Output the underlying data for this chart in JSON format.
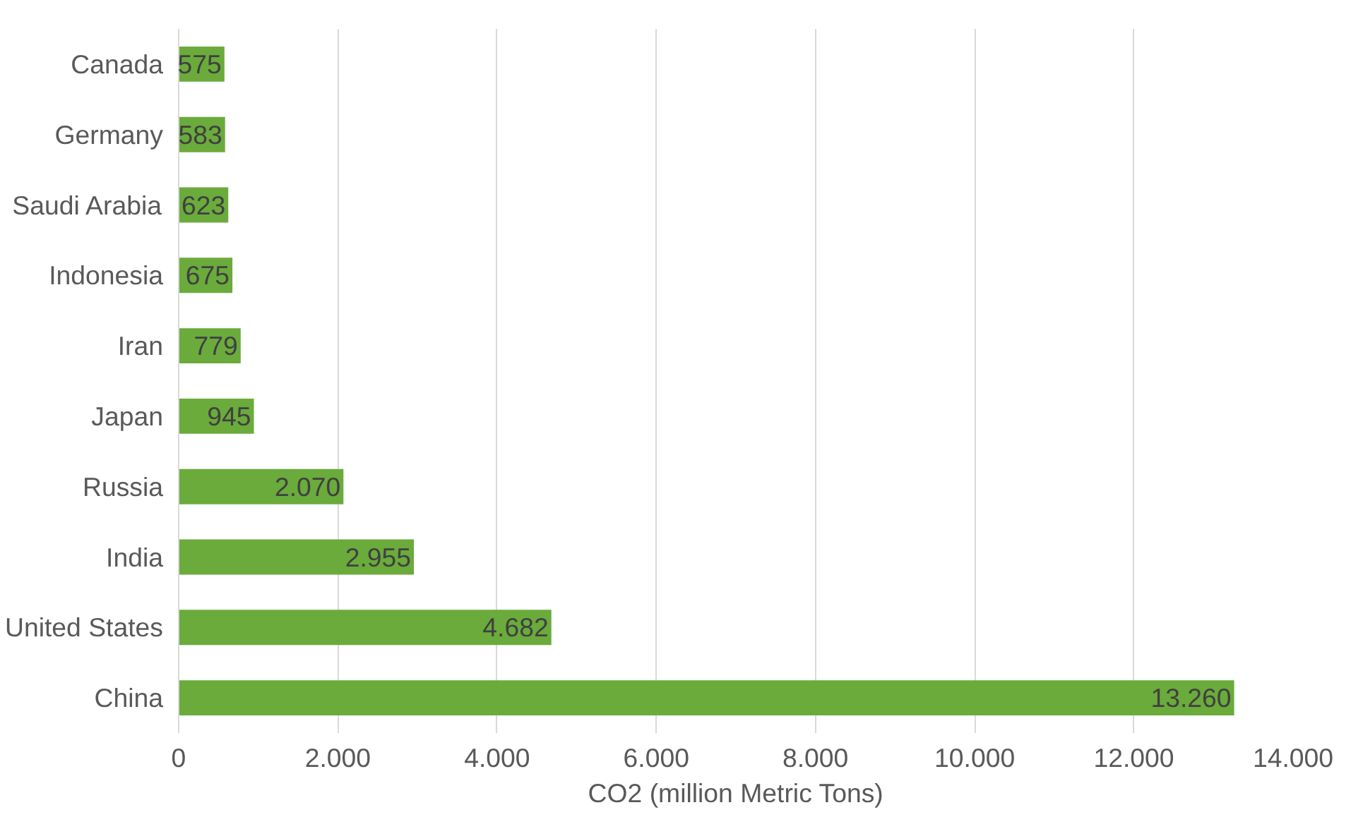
{
  "chart_data": {
    "type": "bar",
    "orientation": "horizontal",
    "xlabel": "CO2 (million Metric Tons)",
    "categories": [
      "Canada",
      "Germany",
      "Saudi Arabia",
      "Indonesia",
      "Iran",
      "Japan",
      "Russia",
      "India",
      "United States",
      "China"
    ],
    "values": [
      575,
      583,
      623,
      675,
      779,
      945,
      2070,
      2955,
      4682,
      13260
    ],
    "value_labels": [
      "575",
      "583",
      "623",
      "675",
      "779",
      "945",
      "2.070",
      "2.955",
      "4.682",
      "13.260"
    ],
    "color": "#6aab3c",
    "xlim": [
      0,
      14000
    ],
    "xticks": [
      0,
      {
        "value": 2000,
        "label": "2.000"
      },
      {
        "value": 4000,
        "label": "4.000"
      },
      {
        "value": 6000,
        "label": "6.000"
      },
      {
        "value": 8000,
        "label": "8.000"
      },
      {
        "value": 10000,
        "label": "10.000"
      },
      {
        "value": 12000,
        "label": "12.000"
      },
      {
        "value": 14000,
        "label": "14.000"
      }
    ],
    "grid": "x"
  }
}
